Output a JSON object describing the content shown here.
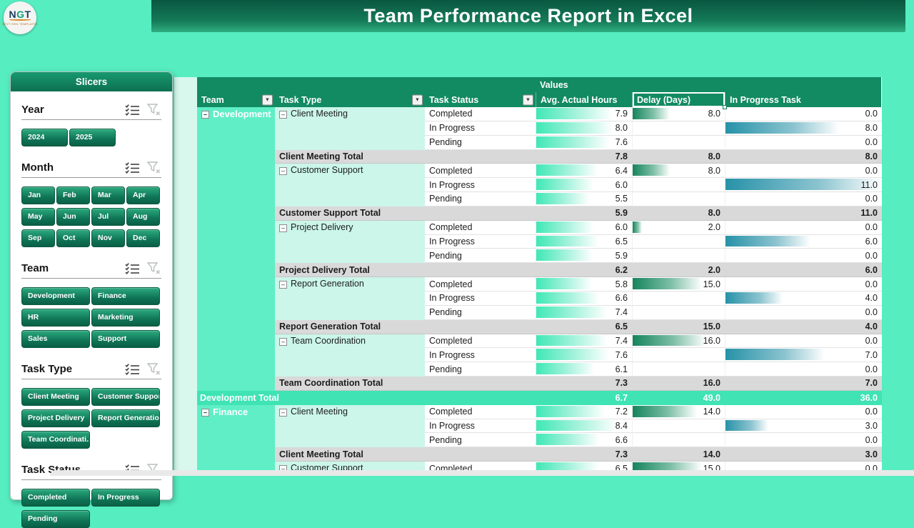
{
  "logo": {
    "text_n": "N",
    "text_g": "G",
    "text_t": "T",
    "tagline": "NEXT GEN TEMPLATES"
  },
  "banner": {
    "title": "Team Performance Report in Excel"
  },
  "slicers": {
    "panel_title": "Slicers",
    "sections": [
      {
        "label": "Year",
        "cols": 2,
        "btn_w": 65,
        "icons": [
          "multi-select-icon",
          "clear-filter-icon"
        ],
        "items": [
          "2024",
          "2025"
        ]
      },
      {
        "label": "Month",
        "cols": 4,
        "btn_w": 47,
        "icons": [
          "multi-select-icon",
          "clear-filter-icon"
        ],
        "items": [
          "Jan",
          "Feb",
          "Mar",
          "Apr",
          "May",
          "Jun",
          "Jul",
          "Aug",
          "Sep",
          "Oct",
          "Nov",
          "Dec"
        ]
      },
      {
        "label": "Team",
        "cols": 2,
        "btn_w": 96,
        "icons": [
          "multi-select-icon",
          "clear-filter-icon"
        ],
        "items": [
          "Development",
          "Finance",
          "HR",
          "Marketing",
          "Sales",
          "Support"
        ]
      },
      {
        "label": "Task Type",
        "cols": 2,
        "btn_w": 96,
        "icons": [
          "multi-select-icon",
          "clear-filter-icon"
        ],
        "items": [
          "Client Meeting",
          "Customer Support",
          "Project Delivery",
          "Report Generation",
          "Team Coordinati..."
        ]
      },
      {
        "label": "Task Status",
        "cols": 2,
        "btn_w": 96,
        "icons": [
          "multi-select-icon",
          "clear-filter-icon"
        ],
        "items": [
          "Completed",
          "In Progress",
          "Pending"
        ]
      }
    ]
  },
  "pivot": {
    "values_label": "Values",
    "columns": [
      "Team",
      "Task Type",
      "Task Status",
      "Avg. Actual Hours",
      "Delay (Days)",
      "In Progress Task"
    ],
    "selected_header": "Delay (Days)",
    "total_suffix": "Total",
    "bar_max": {
      "avg": 10,
      "delay": 20,
      "inprog": 11
    },
    "groups": [
      {
        "team": "Development",
        "task_types": [
          {
            "name": "Client Meeting",
            "rows": [
              {
                "status": "Completed",
                "avg": 7.9,
                "delay": 8.0,
                "inprog": 0.0
              },
              {
                "status": "In Progress",
                "avg": 8.0,
                "delay": null,
                "inprog": 8.0
              },
              {
                "status": "Pending",
                "avg": 7.6,
                "delay": null,
                "inprog": 0.0
              }
            ],
            "total": {
              "avg": 7.8,
              "delay": 8.0,
              "inprog": 8.0
            }
          },
          {
            "name": "Customer Support",
            "rows": [
              {
                "status": "Completed",
                "avg": 6.4,
                "delay": 8.0,
                "inprog": 0.0
              },
              {
                "status": "In Progress",
                "avg": 6.0,
                "delay": null,
                "inprog": 11.0
              },
              {
                "status": "Pending",
                "avg": 5.5,
                "delay": null,
                "inprog": 0.0
              }
            ],
            "total": {
              "avg": 5.9,
              "delay": 8.0,
              "inprog": 11.0
            }
          },
          {
            "name": "Project Delivery",
            "rows": [
              {
                "status": "Completed",
                "avg": 6.0,
                "delay": 2.0,
                "inprog": 0.0
              },
              {
                "status": "In Progress",
                "avg": 6.5,
                "delay": null,
                "inprog": 6.0
              },
              {
                "status": "Pending",
                "avg": 5.9,
                "delay": null,
                "inprog": 0.0
              }
            ],
            "total": {
              "avg": 6.2,
              "delay": 2.0,
              "inprog": 6.0
            }
          },
          {
            "name": "Report Generation",
            "rows": [
              {
                "status": "Completed",
                "avg": 5.8,
                "delay": 15.0,
                "inprog": 0.0
              },
              {
                "status": "In Progress",
                "avg": 6.6,
                "delay": null,
                "inprog": 4.0
              },
              {
                "status": "Pending",
                "avg": 7.4,
                "delay": null,
                "inprog": 0.0
              }
            ],
            "total": {
              "avg": 6.5,
              "delay": 15.0,
              "inprog": 4.0
            }
          },
          {
            "name": "Team Coordination",
            "rows": [
              {
                "status": "Completed",
                "avg": 7.4,
                "delay": 16.0,
                "inprog": 0.0
              },
              {
                "status": "In Progress",
                "avg": 7.6,
                "delay": null,
                "inprog": 7.0
              },
              {
                "status": "Pending",
                "avg": 6.1,
                "delay": null,
                "inprog": 0.0
              }
            ],
            "total": {
              "avg": 7.3,
              "delay": 16.0,
              "inprog": 7.0
            }
          }
        ],
        "total": {
          "avg": 6.7,
          "delay": 49.0,
          "inprog": 36.0
        }
      },
      {
        "team": "Finance",
        "task_types": [
          {
            "name": "Client Meeting",
            "rows": [
              {
                "status": "Completed",
                "avg": 7.2,
                "delay": 14.0,
                "inprog": 0.0
              },
              {
                "status": "In Progress",
                "avg": 8.4,
                "delay": null,
                "inprog": 3.0
              },
              {
                "status": "Pending",
                "avg": 6.6,
                "delay": null,
                "inprog": 0.0
              }
            ],
            "total": {
              "avg": 7.3,
              "delay": 14.0,
              "inprog": 3.0
            }
          },
          {
            "name": "Customer Support",
            "rows": [
              {
                "status": "Completed",
                "avg": 6.5,
                "delay": 15.0,
                "inprog": 0.0
              }
            ],
            "total": null
          }
        ],
        "total": null
      }
    ]
  },
  "colors": {
    "page_bg": "#56EDC1",
    "header_green": "#128A62",
    "subtotal_gray": "#D9D9D9",
    "group_total_mint": "#3FE3B4",
    "bar_avg": "#3FE8B6",
    "bar_delay": "#15845C",
    "bar_inprog": "#2792A8"
  }
}
